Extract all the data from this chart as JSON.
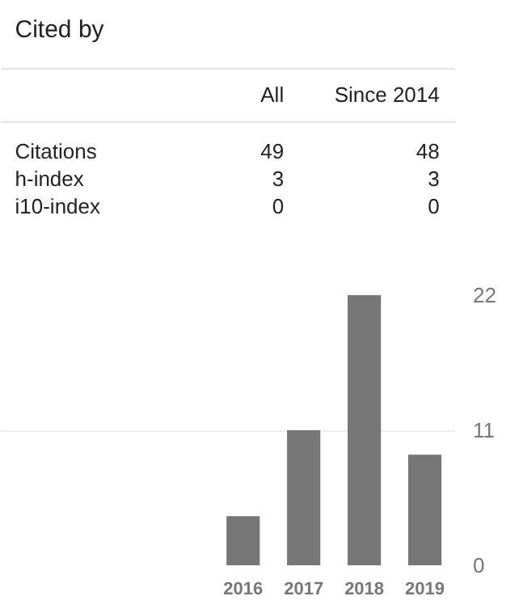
{
  "chart_data": [
    {
      "type": "other",
      "title": "Cited by",
      "categories": [
        "Citations",
        "h-index",
        "i10-index"
      ],
      "series": [
        {
          "name": "All",
          "values": [
            49,
            3,
            0
          ]
        },
        {
          "name": "Since 2014",
          "values": [
            48,
            3,
            0
          ]
        }
      ],
      "data_labels": true
    },
    {
      "type": "bar",
      "categories": [
        "2016",
        "2017",
        "2018",
        "2019"
      ],
      "values": [
        4,
        11,
        22,
        9
      ],
      "color": "#777777",
      "ylim": [
        0,
        22
      ],
      "yticks": [
        0,
        11,
        22
      ],
      "grid": "y"
    }
  ]
}
